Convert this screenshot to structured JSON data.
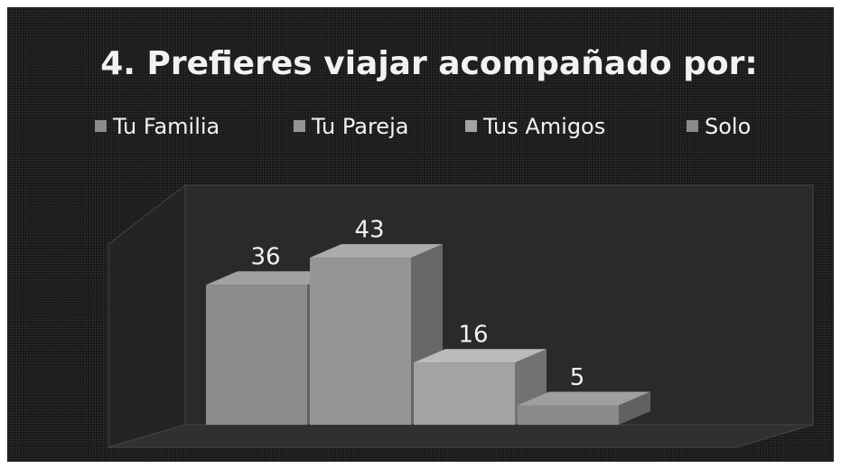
{
  "chart_data": {
    "type": "bar3d",
    "title": "4. Prefieres viajar acompañado por:",
    "categories": [
      null
    ],
    "series": [
      {
        "name": "Tu Familia",
        "color": "#8c8c8c",
        "values": [
          36
        ]
      },
      {
        "name": "Tu Pareja",
        "color": "#959595",
        "values": [
          43
        ]
      },
      {
        "name": "Tus Amigos",
        "color": "#a3a3a3",
        "values": [
          16
        ]
      },
      {
        "name": "Solo",
        "color": "#8a8a8a",
        "values": [
          5
        ]
      }
    ],
    "ylim": [
      0,
      50
    ],
    "legend": "top"
  }
}
